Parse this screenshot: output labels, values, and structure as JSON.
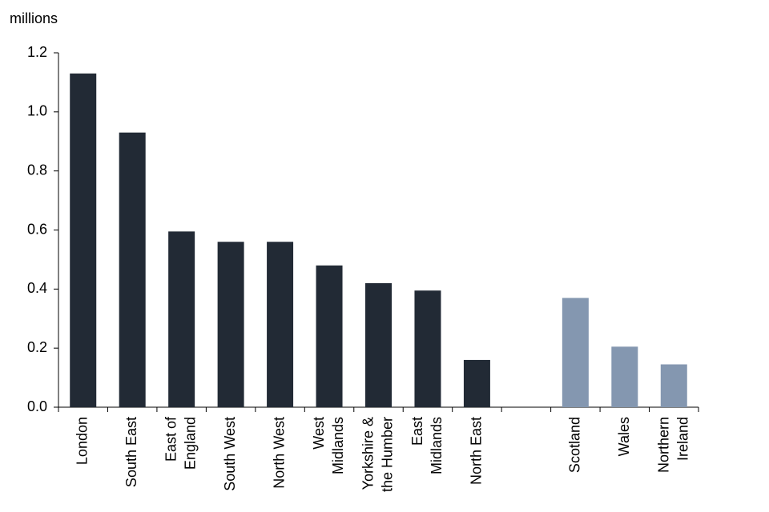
{
  "chart_data": {
    "type": "bar",
    "y_label": "millions",
    "categories": [
      "London",
      "South East",
      "East of\nEngland",
      "South West",
      "North West",
      "West\nMidlands",
      "Yorkshire &\nthe Humber",
      "East\nMidlands",
      "North East",
      null,
      "Scotland",
      "Wales",
      "Northern\nIreland"
    ],
    "values": [
      1.13,
      0.93,
      0.595,
      0.56,
      0.56,
      0.48,
      0.42,
      0.395,
      0.16,
      null,
      0.37,
      0.205,
      0.145
    ],
    "colors": [
      "#222a35",
      "#222a35",
      "#222a35",
      "#222a35",
      "#222a35",
      "#222a35",
      "#222a35",
      "#222a35",
      "#222a35",
      null,
      "#8497b0",
      "#8497b0",
      "#8497b0"
    ],
    "ylim": [
      0,
      1.2
    ],
    "yticks": [
      {
        "value": 0,
        "label": "0.0"
      },
      {
        "value": 0.2,
        "label": "0.2"
      },
      {
        "value": 0.4,
        "label": "0.4"
      },
      {
        "value": 0.6,
        "label": "0.6"
      },
      {
        "value": 0.8,
        "label": "0.8"
      },
      {
        "value": 1,
        "label": "1.0"
      },
      {
        "value": 1.2,
        "label": "1.2"
      }
    ],
    "grid": false
  }
}
